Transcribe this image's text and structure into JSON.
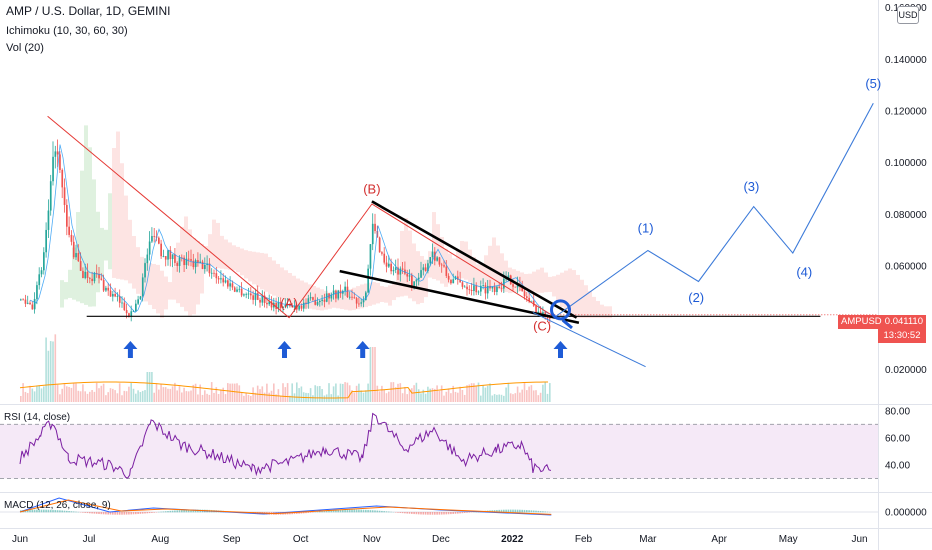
{
  "legend": {
    "title": "AMP / U.S. Dollar, 1D, GEMINI",
    "ichimoku": "Ichimoku (10, 30, 60, 30)",
    "volume": "Vol (20)"
  },
  "currency_button": "USD",
  "price_tag": {
    "symbol": "AMPUSD",
    "value": "0.041110",
    "countdown": "13:30:52"
  },
  "rsi_label": "RSI (14, close)",
  "macd_label": "MACD (12, 26, close, 9)",
  "colors": {
    "up": "#26a69a",
    "down": "#ef5350",
    "trendline": "#000000",
    "annotation_blue": "#1e5bd6",
    "annotation_red": "#d32f2f",
    "rsi": "#7b1fa2",
    "volume_ma": "#ff9800"
  },
  "chart_data": [
    {
      "type": "candlestick",
      "title": "AMP / U.S. Dollar, 1D, GEMINI",
      "x_ticks": [
        "Jun",
        "Jul",
        "Aug",
        "Sep",
        "Oct",
        "Nov",
        "Dec",
        "2022",
        "Feb",
        "Mar",
        "Apr",
        "May",
        "Jun"
      ],
      "y_ticks": [
        "0.160000",
        "0.140000",
        "0.120000",
        "0.100000",
        "0.080000",
        "0.060000",
        "0.020000"
      ],
      "ylim": [
        0.005,
        0.163
      ],
      "last_price": 0.04111,
      "support_level": 0.0405,
      "price_path": [
        {
          "date": "2021-06-01",
          "value": 0.047
        },
        {
          "date": "2021-06-06",
          "value": 0.045
        },
        {
          "date": "2021-06-10",
          "value": 0.058
        },
        {
          "date": "2021-06-13",
          "value": 0.08
        },
        {
          "date": "2021-06-16",
          "value": 0.108
        },
        {
          "date": "2021-06-18",
          "value": 0.095
        },
        {
          "date": "2021-06-21",
          "value": 0.075
        },
        {
          "date": "2021-06-24",
          "value": 0.065
        },
        {
          "date": "2021-06-28",
          "value": 0.057
        },
        {
          "date": "2021-07-04",
          "value": 0.056
        },
        {
          "date": "2021-07-09",
          "value": 0.05
        },
        {
          "date": "2021-07-14",
          "value": 0.046
        },
        {
          "date": "2021-07-19",
          "value": 0.041
        },
        {
          "date": "2021-07-23",
          "value": 0.05
        },
        {
          "date": "2021-07-26",
          "value": 0.065
        },
        {
          "date": "2021-07-29",
          "value": 0.074
        },
        {
          "date": "2021-08-01",
          "value": 0.066
        },
        {
          "date": "2021-08-06",
          "value": 0.063
        },
        {
          "date": "2021-08-12",
          "value": 0.061
        },
        {
          "date": "2021-08-20",
          "value": 0.06
        },
        {
          "date": "2021-08-27",
          "value": 0.055
        },
        {
          "date": "2021-09-03",
          "value": 0.051
        },
        {
          "date": "2021-09-08",
          "value": 0.049
        },
        {
          "date": "2021-09-14",
          "value": 0.047
        },
        {
          "date": "2021-09-20",
          "value": 0.045
        },
        {
          "date": "2021-09-26",
          "value": 0.044
        },
        {
          "date": "2021-10-01",
          "value": 0.045
        },
        {
          "date": "2021-10-08",
          "value": 0.047
        },
        {
          "date": "2021-10-14",
          "value": 0.049
        },
        {
          "date": "2021-10-20",
          "value": 0.05
        },
        {
          "date": "2021-10-26",
          "value": 0.046
        },
        {
          "date": "2021-10-29",
          "value": 0.05
        },
        {
          "date": "2021-11-01",
          "value": 0.075
        },
        {
          "date": "2021-11-03",
          "value": 0.07
        },
        {
          "date": "2021-11-06",
          "value": 0.062
        },
        {
          "date": "2021-11-10",
          "value": 0.058
        },
        {
          "date": "2021-11-16",
          "value": 0.056
        },
        {
          "date": "2021-11-20",
          "value": 0.053
        },
        {
          "date": "2021-11-24",
          "value": 0.06
        },
        {
          "date": "2021-11-27",
          "value": 0.066
        },
        {
          "date": "2021-11-30",
          "value": 0.061
        },
        {
          "date": "2021-12-04",
          "value": 0.055
        },
        {
          "date": "2021-12-10",
          "value": 0.053
        },
        {
          "date": "2021-12-17",
          "value": 0.051
        },
        {
          "date": "2021-12-24",
          "value": 0.052
        },
        {
          "date": "2021-12-31",
          "value": 0.055
        },
        {
          "date": "2022-01-05",
          "value": 0.05
        },
        {
          "date": "2022-01-10",
          "value": 0.044
        },
        {
          "date": "2022-01-14",
          "value": 0.041
        },
        {
          "date": "2022-01-18",
          "value": 0.0411
        }
      ],
      "annotations": [
        {
          "label": "(A)",
          "date": "2021-09-26",
          "value": 0.044,
          "color": "red"
        },
        {
          "label": "(B)",
          "date": "2021-11-01",
          "value": 0.088,
          "color": "red"
        },
        {
          "label": "(C)",
          "date": "2022-01-14",
          "value": 0.035,
          "color": "red"
        },
        {
          "label": "(1)",
          "date": "2022-02-28",
          "value": 0.073,
          "color": "blue"
        },
        {
          "label": "(2)",
          "date": "2022-03-22",
          "value": 0.046,
          "color": "blue"
        },
        {
          "label": "(3)",
          "date": "2022-04-15",
          "value": 0.089,
          "color": "blue"
        },
        {
          "label": "(4)",
          "date": "2022-05-08",
          "value": 0.056,
          "color": "blue"
        },
        {
          "label": "(5)",
          "date": "2022-06-07",
          "value": 0.129,
          "color": "blue"
        }
      ],
      "elliott_projection": [
        {
          "date": "2022-01-20",
          "value": 0.0405
        },
        {
          "date": "2022-03-01",
          "value": 0.066
        },
        {
          "date": "2022-03-23",
          "value": 0.054
        },
        {
          "date": "2022-04-16",
          "value": 0.083
        },
        {
          "date": "2022-05-03",
          "value": 0.065
        },
        {
          "date": "2022-06-07",
          "value": 0.123
        }
      ],
      "abc_path": [
        {
          "date": "2021-06-13",
          "value": 0.118
        },
        {
          "date": "2021-09-26",
          "value": 0.04
        },
        {
          "date": "2021-11-01",
          "value": 0.084
        },
        {
          "date": "2022-01-20",
          "value": 0.04
        }
      ],
      "wedge_upper": [
        {
          "date": "2021-11-01",
          "value": 0.085
        },
        {
          "date": "2022-01-29",
          "value": 0.04
        }
      ],
      "wedge_lower": [
        {
          "date": "2021-10-18",
          "value": 0.058
        },
        {
          "date": "2022-01-30",
          "value": 0.038
        }
      ],
      "downward_line": [
        {
          "date": "2022-01-10",
          "value": 0.042
        },
        {
          "date": "2022-02-28",
          "value": 0.021
        }
      ]
    },
    {
      "type": "line",
      "title": "RSI (14, close)",
      "y_ticks": [
        "80.00",
        "60.00",
        "40.00"
      ],
      "ylim": [
        20,
        85
      ],
      "band": [
        30,
        70
      ],
      "series": [
        {
          "points": [
            {
              "date": "2021-06-01",
              "value": 45
            },
            {
              "date": "2021-06-10",
              "value": 62
            },
            {
              "date": "2021-06-15",
              "value": 72
            },
            {
              "date": "2021-06-22",
              "value": 45
            },
            {
              "date": "2021-07-10",
              "value": 40
            },
            {
              "date": "2021-07-19",
              "value": 33
            },
            {
              "date": "2021-07-28",
              "value": 72
            },
            {
              "date": "2021-08-10",
              "value": 55
            },
            {
              "date": "2021-08-25",
              "value": 47
            },
            {
              "date": "2021-09-10",
              "value": 37
            },
            {
              "date": "2021-09-26",
              "value": 42
            },
            {
              "date": "2021-10-12",
              "value": 52
            },
            {
              "date": "2021-10-28",
              "value": 45
            },
            {
              "date": "2021-11-02",
              "value": 78
            },
            {
              "date": "2021-11-15",
              "value": 52
            },
            {
              "date": "2021-11-28",
              "value": 66
            },
            {
              "date": "2021-12-10",
              "value": 43
            },
            {
              "date": "2021-12-25",
              "value": 51
            },
            {
              "date": "2022-01-05",
              "value": 55
            },
            {
              "date": "2022-01-10",
              "value": 38
            },
            {
              "date": "2022-01-18",
              "value": 35
            }
          ]
        }
      ]
    },
    {
      "type": "line",
      "title": "MACD (12, 26, close, 9)",
      "y_ticks": [
        "0.000000"
      ],
      "ylim": [
        -0.008,
        0.01
      ],
      "series": [
        {
          "points": [
            {
              "date": "2021-06-01",
              "value": 0
            },
            {
              "date": "2021-06-18",
              "value": 0.007
            },
            {
              "date": "2021-07-10",
              "value": 0
            },
            {
              "date": "2021-07-29",
              "value": 0.002
            },
            {
              "date": "2021-09-15",
              "value": -0.001
            },
            {
              "date": "2021-11-03",
              "value": 0.003
            },
            {
              "date": "2021-12-01",
              "value": 0.001
            },
            {
              "date": "2022-01-18",
              "value": -0.0015
            }
          ]
        },
        {
          "points": [
            {
              "date": "2021-06-01",
              "value": 0
            },
            {
              "date": "2021-06-22",
              "value": 0.006
            },
            {
              "date": "2021-07-15",
              "value": 0.0005
            },
            {
              "date": "2021-08-03",
              "value": 0.0015
            },
            {
              "date": "2021-09-20",
              "value": -0.0008
            },
            {
              "date": "2021-11-08",
              "value": 0.0025
            },
            {
              "date": "2021-12-05",
              "value": 0.001
            },
            {
              "date": "2022-01-18",
              "value": -0.0012
            }
          ]
        }
      ]
    }
  ]
}
